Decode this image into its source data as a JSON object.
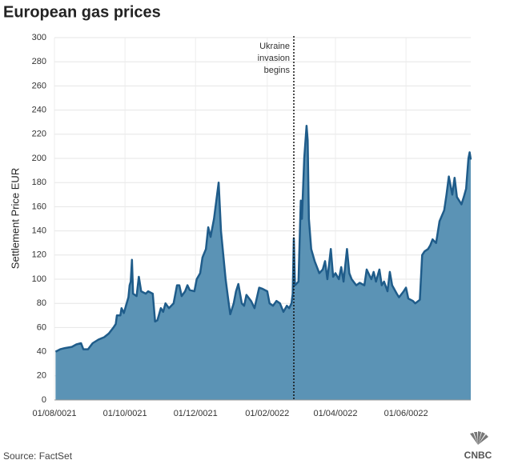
{
  "chart_data": {
    "type": "area",
    "title": "European gas prices",
    "y_label": "Settlement Price EUR",
    "source": "Source: FactSet",
    "logo": "CNBC",
    "color": "#5b93b5",
    "line_color": "#1f5c8a",
    "grid": true,
    "ylim": [
      0,
      300
    ],
    "yticks": [
      0,
      20,
      40,
      60,
      80,
      100,
      120,
      140,
      160,
      180,
      200,
      220,
      240,
      260,
      280,
      300
    ],
    "xlim": [
      "2021-08-01",
      "2022-07-27"
    ],
    "xticks": [
      {
        "value": "2021-08-01",
        "label": "01/08/0021"
      },
      {
        "value": "2021-10-01",
        "label": "01/10/0021"
      },
      {
        "value": "2021-12-01",
        "label": "01/12/0021"
      },
      {
        "value": "2022-02-01",
        "label": "01/02/0022"
      },
      {
        "value": "2022-04-01",
        "label": "01/04/0022"
      },
      {
        "value": "2022-06-01",
        "label": "01/06/0022"
      }
    ],
    "annotation": {
      "x": "2022-02-24",
      "lines": [
        "Ukraine",
        "invasion",
        "begins"
      ]
    },
    "x": [
      "2021-08-02",
      "2021-08-06",
      "2021-08-10",
      "2021-08-16",
      "2021-08-20",
      "2021-08-24",
      "2021-08-26",
      "2021-08-30",
      "2021-09-03",
      "2021-09-08",
      "2021-09-13",
      "2021-09-17",
      "2021-09-21",
      "2021-09-23",
      "2021-09-24",
      "2021-09-27",
      "2021-09-28",
      "2021-09-30",
      "2021-10-04",
      "2021-10-05",
      "2021-10-06",
      "2021-10-07",
      "2021-10-08",
      "2021-10-11",
      "2021-10-13",
      "2021-10-15",
      "2021-10-19",
      "2021-10-21",
      "2021-10-25",
      "2021-10-27",
      "2021-10-29",
      "2021-11-01",
      "2021-11-03",
      "2021-11-05",
      "2021-11-08",
      "2021-11-12",
      "2021-11-15",
      "2021-11-17",
      "2021-11-19",
      "2021-11-22",
      "2021-11-24",
      "2021-11-26",
      "2021-11-30",
      "2021-12-02",
      "2021-12-05",
      "2021-12-07",
      "2021-12-10",
      "2021-12-12",
      "2021-12-14",
      "2021-12-17",
      "2021-12-21",
      "2021-12-23",
      "2021-12-27",
      "2021-12-29",
      "2021-12-31",
      "2022-01-03",
      "2022-01-05",
      "2022-01-07",
      "2022-01-10",
      "2022-01-12",
      "2022-01-14",
      "2022-01-18",
      "2022-01-21",
      "2022-01-25",
      "2022-01-28",
      "2022-02-01",
      "2022-02-03",
      "2022-02-06",
      "2022-02-09",
      "2022-02-12",
      "2022-02-15",
      "2022-02-18",
      "2022-02-20",
      "2022-02-22",
      "2022-02-23",
      "2022-02-24",
      "2022-02-25",
      "2022-02-28",
      "2022-03-02",
      "2022-03-03",
      "2022-03-05",
      "2022-03-07",
      "2022-03-08",
      "2022-03-09",
      "2022-03-11",
      "2022-03-14",
      "2022-03-16",
      "2022-03-18",
      "2022-03-21",
      "2022-03-23",
      "2022-03-25",
      "2022-03-28",
      "2022-03-30",
      "2022-04-01",
      "2022-04-04",
      "2022-04-06",
      "2022-04-08",
      "2022-04-11",
      "2022-04-13",
      "2022-04-15",
      "2022-04-19",
      "2022-04-22",
      "2022-04-26",
      "2022-04-28",
      "2022-05-02",
      "2022-05-04",
      "2022-05-06",
      "2022-05-09",
      "2022-05-11",
      "2022-05-13",
      "2022-05-16",
      "2022-05-18",
      "2022-05-20",
      "2022-05-24",
      "2022-05-26",
      "2022-05-30",
      "2022-06-01",
      "2022-06-03",
      "2022-06-07",
      "2022-06-09",
      "2022-06-13",
      "2022-06-15",
      "2022-06-17",
      "2022-06-20",
      "2022-06-22",
      "2022-06-24",
      "2022-06-27",
      "2022-06-30",
      "2022-07-04",
      "2022-07-06",
      "2022-07-08",
      "2022-07-11",
      "2022-07-13",
      "2022-07-15",
      "2022-07-19",
      "2022-07-21",
      "2022-07-23",
      "2022-07-25",
      "2022-07-26",
      "2022-07-27"
    ],
    "values": [
      40,
      42,
      43,
      44,
      46,
      47,
      42,
      42,
      47,
      50,
      52,
      55,
      60,
      63,
      70,
      70,
      76,
      72,
      85,
      95,
      98,
      116,
      88,
      86,
      102,
      90,
      88,
      90,
      88,
      65,
      66,
      76,
      73,
      80,
      76,
      80,
      95,
      95,
      86,
      90,
      95,
      91,
      90,
      100,
      105,
      118,
      125,
      143,
      135,
      150,
      180,
      140,
      100,
      85,
      71,
      80,
      90,
      96,
      80,
      78,
      87,
      82,
      76,
      93,
      92,
      90,
      80,
      78,
      82,
      80,
      73,
      78,
      76,
      80,
      88,
      134,
      95,
      98,
      165,
      150,
      200,
      227,
      215,
      150,
      125,
      115,
      110,
      105,
      108,
      115,
      100,
      125,
      102,
      105,
      100,
      110,
      98,
      125,
      105,
      100,
      95,
      97,
      95,
      108,
      100,
      106,
      98,
      108,
      95,
      98,
      90,
      106,
      95,
      88,
      85,
      90,
      93,
      84,
      82,
      80,
      83,
      120,
      123,
      125,
      128,
      133,
      130,
      148,
      157,
      170,
      185,
      170,
      184,
      168,
      162,
      168,
      175,
      200,
      205,
      199
    ]
  }
}
